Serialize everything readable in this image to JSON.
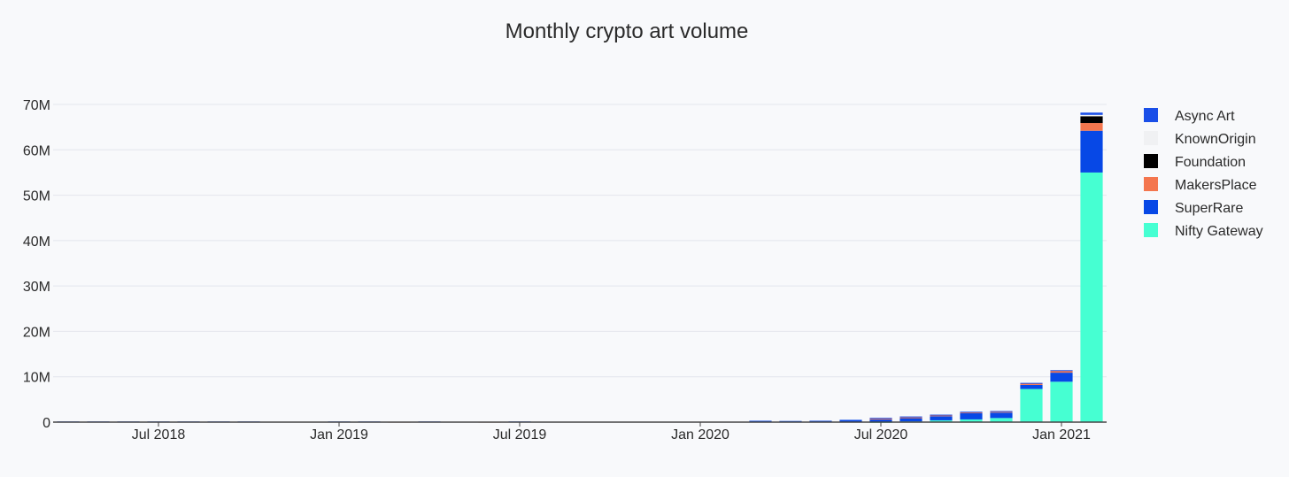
{
  "chart_data": {
    "type": "bar",
    "stacked": true,
    "title": "Monthly crypto art volume",
    "xlabel": "",
    "ylabel": "",
    "ylim": [
      0,
      70000000
    ],
    "y_ticks": [
      0,
      10000000,
      20000000,
      30000000,
      40000000,
      50000000,
      60000000,
      70000000
    ],
    "y_tick_labels": [
      "0",
      "10M",
      "20M",
      "30M",
      "40M",
      "50M",
      "60M",
      "70M"
    ],
    "x_tick_labels": [
      {
        "month": "2018-07",
        "label": "Jul 2018"
      },
      {
        "month": "2019-01",
        "label": "Jan 2019"
      },
      {
        "month": "2019-07",
        "label": "Jul 2019"
      },
      {
        "month": "2020-01",
        "label": "Jan 2020"
      },
      {
        "month": "2020-07",
        "label": "Jul 2020"
      },
      {
        "month": "2021-01",
        "label": "Jan 2021"
      }
    ],
    "grid": true,
    "legend_position": "right",
    "categories": [
      "2018-04",
      "2018-05",
      "2018-06",
      "2018-07",
      "2018-08",
      "2018-09",
      "2018-10",
      "2018-11",
      "2018-12",
      "2019-01",
      "2019-02",
      "2019-03",
      "2019-04",
      "2019-05",
      "2019-06",
      "2019-07",
      "2019-08",
      "2019-09",
      "2019-10",
      "2019-11",
      "2019-12",
      "2020-01",
      "2020-02",
      "2020-03",
      "2020-04",
      "2020-05",
      "2020-06",
      "2020-07",
      "2020-08",
      "2020-09",
      "2020-10",
      "2020-11",
      "2020-12",
      "2021-01",
      "2021-02"
    ],
    "series": [
      {
        "name": "Nifty Gateway",
        "color": "#46ffd2",
        "values": [
          0,
          0,
          0,
          0,
          0,
          0,
          0,
          0,
          0,
          0,
          0,
          0,
          0,
          0,
          0,
          0,
          0,
          0,
          0,
          0,
          0,
          0,
          0,
          0,
          0,
          0,
          0,
          50000,
          150000,
          400000,
          600000,
          900000,
          7300000,
          8900000,
          55000000
        ]
      },
      {
        "name": "SuperRare",
        "color": "#0748e6",
        "values": [
          0,
          0,
          0,
          0,
          0,
          0,
          0,
          0,
          0,
          0,
          0,
          0,
          0,
          0,
          0,
          0,
          0,
          0,
          0,
          0,
          0,
          0,
          0,
          300000,
          250000,
          300000,
          500000,
          600000,
          750000,
          900000,
          1400000,
          1200000,
          900000,
          2000000,
          9200000
        ]
      },
      {
        "name": "MakersPlace",
        "color": "#f4764e",
        "values": [
          0,
          0,
          0,
          0,
          0,
          0,
          0,
          0,
          0,
          0,
          0,
          80000,
          0,
          0,
          80000,
          0,
          0,
          0,
          0,
          0,
          0,
          0,
          0,
          0,
          0,
          0,
          0,
          100000,
          150000,
          200000,
          150000,
          200000,
          300000,
          400000,
          1700000
        ]
      },
      {
        "name": "Foundation",
        "color": "#000000",
        "values": [
          0,
          0,
          0,
          0,
          0,
          0,
          0,
          0,
          0,
          0,
          0,
          0,
          0,
          0,
          0,
          0,
          0,
          0,
          0,
          0,
          0,
          0,
          0,
          0,
          0,
          0,
          0,
          0,
          0,
          0,
          0,
          0,
          0,
          0,
          1500000
        ]
      },
      {
        "name": "KnownOrigin",
        "color": "#f0f1f3",
        "values": [
          0,
          0,
          0,
          0,
          0,
          0,
          0,
          0,
          0,
          0,
          0,
          0,
          0,
          0,
          0,
          0,
          0,
          0,
          0,
          0,
          0,
          0,
          0,
          0,
          0,
          0,
          0,
          0,
          0,
          0,
          0,
          0,
          0,
          0,
          300000
        ]
      },
      {
        "name": "Async Art",
        "color": "#1a4fe8",
        "values": [
          150000,
          150000,
          150000,
          150000,
          150000,
          150000,
          150000,
          0,
          0,
          150000,
          150000,
          0,
          150000,
          0,
          0,
          150000,
          0,
          0,
          0,
          0,
          0,
          0,
          0,
          0,
          0,
          0,
          0,
          200000,
          200000,
          150000,
          150000,
          150000,
          150000,
          150000,
          500000
        ]
      }
    ],
    "legend": [
      "Async Art",
      "KnownOrigin",
      "Foundation",
      "MakersPlace",
      "SuperRare",
      "Nifty Gateway"
    ]
  }
}
